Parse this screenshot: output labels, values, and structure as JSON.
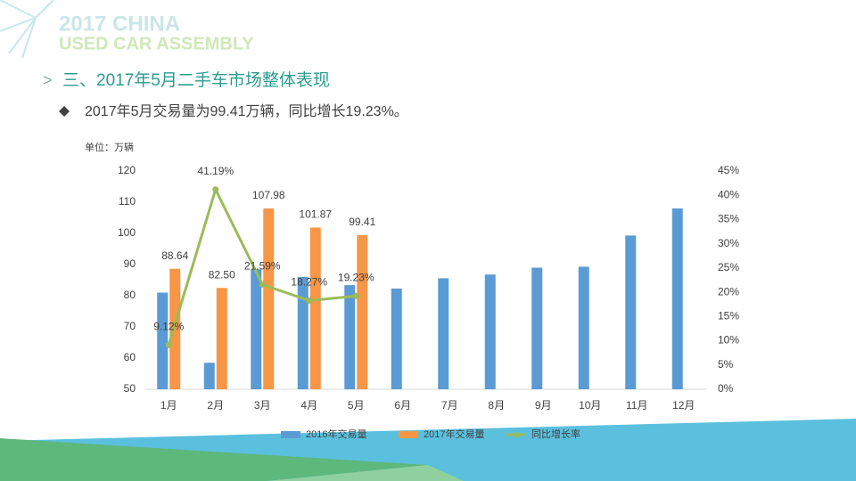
{
  "logo": {
    "line1": "2017 CHINA",
    "line2": "USED CAR ASSEMBLY"
  },
  "heading": "三、2017年5月二手车市场整体表现",
  "bullet": "2017年5月交易量为99.41万辆，同比增长19.23%。",
  "chart_data": {
    "type": "bar-line",
    "unit_label": "单位：万辆",
    "categories": [
      "1月",
      "2月",
      "3月",
      "4月",
      "5月",
      "6月",
      "7月",
      "8月",
      "9月",
      "10月",
      "11月",
      "12月"
    ],
    "series": [
      {
        "name": "2016年交易量",
        "color": "#5b9bd5",
        "values": [
          81,
          58.5,
          88.5,
          86,
          83.4,
          82.3,
          85.6,
          86.8,
          89,
          89.3,
          99.3,
          108
        ]
      },
      {
        "name": "2017年交易量",
        "color": "#f79646",
        "values": [
          88.64,
          82.5,
          107.98,
          101.87,
          99.41,
          null,
          null,
          null,
          null,
          null,
          null,
          null
        ],
        "value_labels": [
          "88.64",
          "82.50",
          "107.98",
          "101.87",
          "99.41",
          null,
          null,
          null,
          null,
          null,
          null,
          null
        ]
      },
      {
        "name": "同比增长率",
        "color": "#9bbb59",
        "axis": "y2",
        "values": [
          9.12,
          41.19,
          21.59,
          18.27,
          19.23,
          null,
          null,
          null,
          null,
          null,
          null,
          null
        ],
        "value_labels": [
          "9.12%",
          "41.19%",
          "21.59%",
          "18.27%",
          "19.23%",
          null,
          null,
          null,
          null,
          null,
          null,
          null
        ]
      }
    ],
    "ylim": [
      50,
      120
    ],
    "yticks": [
      50,
      60,
      70,
      80,
      90,
      100,
      110,
      120
    ],
    "y2lim": [
      0,
      45
    ],
    "y2ticks": [
      {
        "value": 0,
        "label": "0%"
      },
      {
        "value": 5,
        "label": "5%"
      },
      {
        "value": 10,
        "label": "10%"
      },
      {
        "value": 15,
        "label": "15%"
      },
      {
        "value": 20,
        "label": "20%"
      },
      {
        "value": 25,
        "label": "25%"
      },
      {
        "value": 30,
        "label": "30%"
      },
      {
        "value": 35,
        "label": "35%"
      },
      {
        "value": 40,
        "label": "40%"
      },
      {
        "value": 45,
        "label": "45%"
      }
    ],
    "legend": "bottom"
  }
}
